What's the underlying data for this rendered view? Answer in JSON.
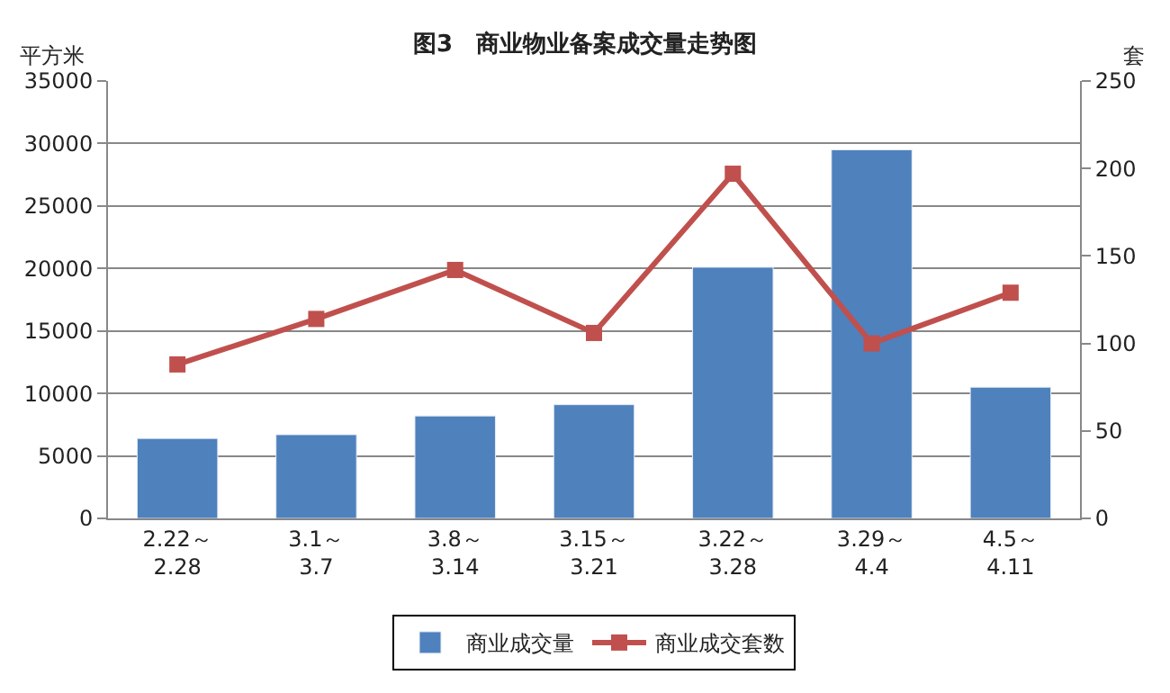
{
  "chart_data": {
    "type": "bar",
    "title": "图3　商业物业备案成交量走势图",
    "ylabel": "平方米",
    "y2label": "套",
    "categories": [
      "2.22～\n2.28",
      "3.1～\n3.7",
      "3.8～\n3.14",
      "3.15～\n3.21",
      "3.22～\n3.28",
      "3.29～\n4.4",
      "4.5～\n4.11"
    ],
    "series": [
      {
        "name": "商业成交量",
        "color": "#4f81bd",
        "values": [
          6400,
          6700,
          8200,
          9100,
          20100,
          29500,
          10500
        ]
      },
      {
        "name": "商业成交套数",
        "type": "line",
        "axis": "y2",
        "color": "#c0504d",
        "marker": "square",
        "values": [
          88,
          114,
          142,
          106,
          197,
          100,
          129
        ]
      }
    ],
    "ylim": [
      0,
      35000
    ],
    "yticks": [
      0,
      5000,
      10000,
      15000,
      20000,
      25000,
      30000,
      35000
    ],
    "y2lim": [
      0,
      250
    ],
    "y2ticks": [
      0,
      50,
      100,
      150,
      200,
      250
    ],
    "grid": "y",
    "legend": "bottom"
  }
}
